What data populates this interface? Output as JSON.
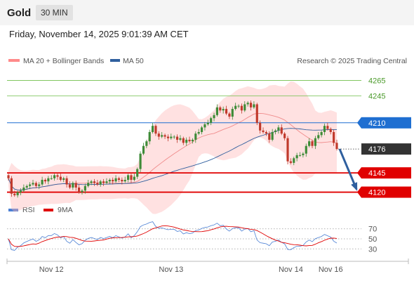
{
  "header": {
    "asset": "Gold",
    "timeframe": "30 MIN",
    "datetime": "Friday, November 14, 2025 9:01:39 AM CET"
  },
  "legend": {
    "bollinger": "MA 20 + Bollinger Bands",
    "ma50": "MA 50",
    "credit": "Research © 2025 Trading Central",
    "rsi": "RSI",
    "rsi_ma": "9MA"
  },
  "colors": {
    "up": "#3d8b37",
    "down": "#c0392b",
    "bollinger": "#ffb3b3",
    "ma20": "#f08c8c",
    "ma50": "#2f5f9e",
    "resistance": "#6fbf4a",
    "pivot": "#1f6fd1",
    "support": "#e00000",
    "rsi": "#4a7fd4",
    "rsi_ma": "#e00000",
    "arrow": "#2f5f9e"
  },
  "chart_data": [
    {
      "type": "candlestick",
      "x_ticks": [
        "Nov 12",
        "Nov 13",
        "Nov 14",
        "Nov 16"
      ],
      "ylim": [
        4105,
        4280
      ],
      "levels": [
        {
          "value": 4265,
          "label": "4265",
          "kind": "resistance"
        },
        {
          "value": 4245,
          "label": "4245",
          "kind": "resistance"
        },
        {
          "value": 4210,
          "label": "4210",
          "kind": "pivot"
        },
        {
          "value": 4176,
          "label": "4176",
          "kind": "last"
        },
        {
          "value": 4145,
          "label": "4145",
          "kind": "support"
        },
        {
          "value": 4120,
          "label": "4120",
          "kind": "support"
        }
      ],
      "close": [
        4138,
        4118,
        4116,
        4120,
        4122,
        4126,
        4128,
        4130,
        4132,
        4128,
        4130,
        4136,
        4134,
        4138,
        4138,
        4142,
        4140,
        4136,
        4138,
        4130,
        4126,
        4132,
        4126,
        4120,
        4122,
        4128,
        4132,
        4134,
        4132,
        4130,
        4134,
        4132,
        4134,
        4136,
        4134,
        4138,
        4136,
        4134,
        4136,
        4142,
        4136,
        4140,
        4150,
        4170,
        4180,
        4186,
        4198,
        4206,
        4196,
        4192,
        4194,
        4192,
        4190,
        4192,
        4192,
        4188,
        4190,
        4184,
        4188,
        4186,
        4188,
        4196,
        4198,
        4204,
        4208,
        4210,
        4216,
        4220,
        4230,
        4226,
        4228,
        4222,
        4218,
        4228,
        4232,
        4232,
        4226,
        4234,
        4236,
        4230,
        4234,
        4210,
        4200,
        4198,
        4196,
        4188,
        4198,
        4200,
        4204,
        4196,
        4190,
        4160,
        4158,
        4164,
        4168,
        4168,
        4170,
        4180,
        4186,
        4180,
        4190,
        4194,
        4198,
        4206,
        4202,
        4198,
        4184,
        4176
      ]
    },
    {
      "type": "line",
      "series": [
        {
          "name": "RSI"
        },
        {
          "name": "9MA"
        }
      ],
      "y_ticks": [
        70,
        50,
        30
      ],
      "ylim": [
        15,
        85
      ]
    }
  ]
}
